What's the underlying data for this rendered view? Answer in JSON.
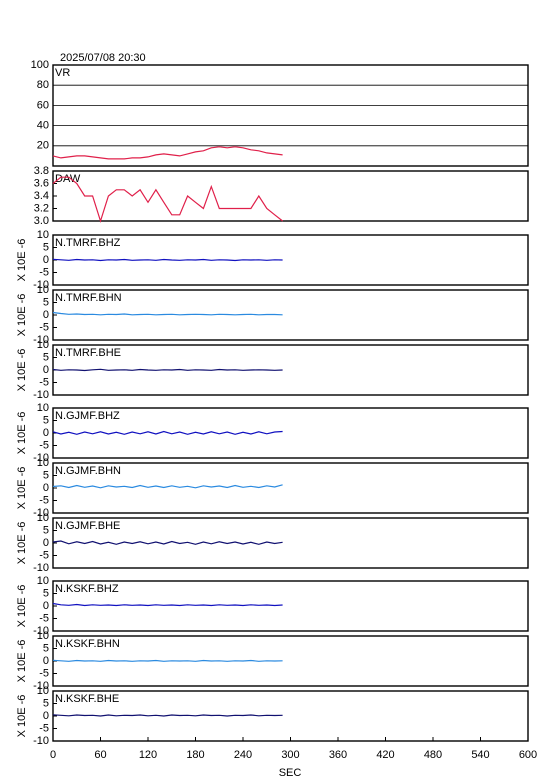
{
  "chart_data": [
    {
      "type": "line",
      "title": "2025/07/08 20:30",
      "label": "VR",
      "xlim": [
        0,
        600
      ],
      "ylim": [
        0,
        100
      ],
      "yticks": [
        20,
        40,
        60,
        80,
        100
      ],
      "grid": true,
      "color": "#e0204a",
      "x": [
        0,
        10,
        20,
        30,
        40,
        50,
        60,
        70,
        80,
        90,
        100,
        110,
        120,
        130,
        140,
        150,
        160,
        170,
        180,
        190,
        200,
        210,
        220,
        230,
        240,
        250,
        260,
        270,
        280,
        290
      ],
      "values": [
        10,
        8,
        9,
        10,
        10,
        9,
        8,
        7,
        7,
        7,
        8,
        8,
        9,
        11,
        12,
        11,
        10,
        12,
        14,
        15,
        18,
        19,
        18,
        19,
        18,
        16,
        15,
        13,
        12,
        11
      ]
    },
    {
      "type": "line",
      "label": "DAW",
      "xlim": [
        0,
        600
      ],
      "ylim": [
        3.0,
        3.8
      ],
      "yticks": [
        {
          "value": 3.0,
          "label": "3.0"
        },
        3.2,
        3.4,
        3.6,
        3.8
      ],
      "grid": false,
      "color": "#e0204a",
      "x": [
        0,
        10,
        20,
        30,
        40,
        50,
        60,
        70,
        80,
        90,
        100,
        110,
        120,
        130,
        140,
        150,
        160,
        170,
        180,
        190,
        200,
        210,
        220,
        230,
        240,
        250,
        260,
        270,
        280,
        290
      ],
      "values": [
        3.6,
        3.7,
        3.7,
        3.6,
        3.4,
        3.4,
        3.0,
        3.4,
        3.5,
        3.5,
        3.4,
        3.5,
        3.3,
        3.5,
        3.3,
        3.1,
        3.1,
        3.4,
        3.3,
        3.2,
        3.55,
        3.2,
        3.2,
        3.2,
        3.2,
        3.2,
        3.4,
        3.2,
        3.1,
        3.0
      ]
    },
    {
      "type": "line",
      "label": "N.TMRF.BHZ",
      "ylabel": "X 10E -6",
      "xlim": [
        0,
        600
      ],
      "ylim": [
        -10,
        10
      ],
      "yticks": [
        -10,
        -5,
        0,
        5,
        10
      ],
      "grid": false,
      "color": "#1010c0",
      "x": [
        0,
        10,
        20,
        30,
        40,
        50,
        60,
        70,
        80,
        90,
        100,
        110,
        120,
        130,
        140,
        150,
        160,
        170,
        180,
        190,
        200,
        210,
        220,
        230,
        240,
        250,
        260,
        270,
        280,
        290
      ],
      "values": [
        0.3,
        0.1,
        -0.1,
        0.2,
        0,
        0.1,
        -0.2,
        0.1,
        0,
        0.2,
        -0.1,
        0,
        0.1,
        -0.1,
        0.2,
        0,
        -0.1,
        0.1,
        0,
        0.2,
        -0.1,
        0.1,
        0,
        -0.2,
        0.1,
        0,
        0.1,
        -0.1,
        0.1,
        0
      ]
    },
    {
      "type": "line",
      "label": "N.TMRF.BHN",
      "ylabel": "X 10E -6",
      "xlim": [
        0,
        600
      ],
      "ylim": [
        -10,
        10
      ],
      "yticks": [
        -10,
        -5,
        0,
        5,
        10
      ],
      "grid": false,
      "color": "#2a8ae0",
      "x": [
        0,
        10,
        20,
        30,
        40,
        50,
        60,
        70,
        80,
        90,
        100,
        110,
        120,
        130,
        140,
        150,
        160,
        170,
        180,
        190,
        200,
        210,
        220,
        230,
        240,
        250,
        260,
        270,
        280,
        290
      ],
      "values": [
        1.0,
        0.6,
        0.3,
        0.4,
        0.2,
        0.3,
        0.1,
        0.3,
        0.2,
        0.4,
        0.1,
        0.2,
        0.3,
        0.1,
        0.2,
        0.3,
        0.1,
        0.2,
        0.3,
        0.2,
        0.1,
        0.3,
        0.2,
        0.1,
        0.2,
        0.3,
        0.1,
        0.2,
        0.2,
        0.1
      ]
    },
    {
      "type": "line",
      "label": "N.TMRF.BHE",
      "ylabel": "X 10E -6",
      "xlim": [
        0,
        600
      ],
      "ylim": [
        -10,
        10
      ],
      "yticks": [
        -10,
        -5,
        0,
        5,
        10
      ],
      "grid": false,
      "color": "#101070",
      "x": [
        0,
        10,
        20,
        30,
        40,
        50,
        60,
        70,
        80,
        90,
        100,
        110,
        120,
        130,
        140,
        150,
        160,
        170,
        180,
        190,
        200,
        210,
        220,
        230,
        240,
        250,
        260,
        270,
        280,
        290
      ],
      "values": [
        0.2,
        -0.1,
        0.1,
        0,
        -0.2,
        0.1,
        0.3,
        -0.1,
        0,
        0.1,
        -0.1,
        0.2,
        0,
        -0.1,
        0.1,
        0,
        0.2,
        -0.1,
        0.1,
        0,
        -0.1,
        0.2,
        0,
        0.1,
        -0.1,
        0,
        0.1,
        0,
        -0.1,
        0
      ]
    },
    {
      "type": "line",
      "label": "N.GJMF.BHZ",
      "ylabel": "X 10E -6",
      "xlim": [
        0,
        600
      ],
      "ylim": [
        -10,
        10
      ],
      "yticks": [
        -10,
        -5,
        0,
        5,
        10
      ],
      "grid": false,
      "color": "#1010c0",
      "x": [
        0,
        10,
        20,
        30,
        40,
        50,
        60,
        70,
        80,
        90,
        100,
        110,
        120,
        130,
        140,
        150,
        160,
        170,
        180,
        190,
        200,
        210,
        220,
        230,
        240,
        250,
        260,
        270,
        280,
        290
      ],
      "values": [
        0.5,
        -0.4,
        0.3,
        -0.5,
        0.4,
        -0.3,
        0.5,
        -0.4,
        0.3,
        -0.5,
        0.4,
        -0.3,
        0.5,
        -0.4,
        0.6,
        -0.3,
        0.4,
        -0.5,
        0.3,
        -0.4,
        0.5,
        -0.3,
        0.4,
        -0.5,
        0.3,
        -0.4,
        0.5,
        -0.3,
        0.4,
        0.6
      ]
    },
    {
      "type": "line",
      "label": "N.GJMF.BHN",
      "ylabel": "X 10E -6",
      "xlim": [
        0,
        600
      ],
      "ylim": [
        -10,
        10
      ],
      "yticks": [
        -10,
        -5,
        0,
        5,
        10
      ],
      "grid": false,
      "color": "#2a8ae0",
      "x": [
        0,
        10,
        20,
        30,
        40,
        50,
        60,
        70,
        80,
        90,
        100,
        110,
        120,
        130,
        140,
        150,
        160,
        170,
        180,
        190,
        200,
        210,
        220,
        230,
        240,
        250,
        260,
        270,
        280,
        290
      ],
      "values": [
        0.6,
        0.9,
        0.2,
        1.0,
        0.3,
        0.8,
        0.1,
        0.9,
        0.4,
        0.7,
        0.2,
        1.0,
        0.3,
        0.8,
        0.2,
        0.9,
        0.3,
        0.7,
        0.1,
        0.9,
        0.4,
        0.8,
        0.2,
        1.0,
        0.3,
        0.7,
        0.2,
        0.9,
        0.4,
        1.3
      ]
    },
    {
      "type": "line",
      "label": "N.GJMF.BHE",
      "ylabel": "X 10E -6",
      "xlim": [
        0,
        600
      ],
      "ylim": [
        -10,
        10
      ],
      "yticks": [
        -10,
        -5,
        0,
        5,
        10
      ],
      "grid": false,
      "color": "#101070",
      "x": [
        0,
        10,
        20,
        30,
        40,
        50,
        60,
        70,
        80,
        90,
        100,
        110,
        120,
        130,
        140,
        150,
        160,
        170,
        180,
        190,
        200,
        210,
        220,
        230,
        240,
        250,
        260,
        270,
        280,
        290
      ],
      "values": [
        0.4,
        0.8,
        -0.3,
        0.5,
        -0.2,
        0.6,
        -0.4,
        0.3,
        -0.5,
        0.4,
        -0.2,
        0.5,
        -0.3,
        0.4,
        -0.4,
        0.6,
        -0.2,
        0.3,
        -0.5,
        0.4,
        -0.3,
        0.5,
        -0.2,
        0.4,
        -0.4,
        0.3,
        -0.5,
        0.4,
        -0.2,
        0.3
      ]
    },
    {
      "type": "line",
      "label": "N.KSKF.BHZ",
      "ylabel": "X 10E -6",
      "xlim": [
        0,
        600
      ],
      "ylim": [
        -10,
        10
      ],
      "yticks": [
        -10,
        -5,
        0,
        5,
        10
      ],
      "grid": false,
      "color": "#1010c0",
      "x": [
        0,
        10,
        20,
        30,
        40,
        50,
        60,
        70,
        80,
        90,
        100,
        110,
        120,
        130,
        140,
        150,
        160,
        170,
        180,
        190,
        200,
        210,
        220,
        230,
        240,
        250,
        260,
        270,
        280,
        290
      ],
      "values": [
        1.0,
        0.5,
        0.3,
        0.6,
        0.2,
        0.5,
        0.3,
        0.4,
        0.2,
        0.5,
        0.3,
        0.4,
        0.2,
        0.5,
        0.3,
        0.4,
        0.2,
        0.5,
        0.3,
        0.4,
        0.2,
        0.5,
        0.3,
        0.4,
        0.2,
        0.5,
        0.3,
        0.4,
        0.2,
        0.4
      ]
    },
    {
      "type": "line",
      "label": "N.KSKF.BHN",
      "ylabel": "X 10E -6",
      "xlim": [
        0,
        600
      ],
      "ylim": [
        -10,
        10
      ],
      "yticks": [
        -10,
        -5,
        0,
        5,
        10
      ],
      "grid": false,
      "color": "#2a8ae0",
      "x": [
        0,
        10,
        20,
        30,
        40,
        50,
        60,
        70,
        80,
        90,
        100,
        110,
        120,
        130,
        140,
        150,
        160,
        170,
        180,
        190,
        200,
        210,
        220,
        230,
        240,
        250,
        260,
        270,
        280,
        290
      ],
      "values": [
        0.3,
        0.1,
        -0.1,
        0.2,
        0,
        0.1,
        -0.1,
        0.2,
        0,
        0.1,
        -0.1,
        0.1,
        0,
        0.2,
        -0.1,
        0.1,
        0,
        0.1,
        -0.1,
        0.2,
        0,
        0.1,
        -0.1,
        0.1,
        0,
        0.2,
        -0.1,
        0.1,
        0,
        0.1
      ]
    },
    {
      "type": "line",
      "label": "N.KSKF.BHE",
      "ylabel": "X 10E -6",
      "xlim": [
        0,
        600
      ],
      "ylim": [
        -10,
        10
      ],
      "yticks": [
        -10,
        -5,
        0,
        5,
        10
      ],
      "grid": false,
      "color": "#101070",
      "x": [
        0,
        10,
        20,
        30,
        40,
        50,
        60,
        70,
        80,
        90,
        100,
        110,
        120,
        130,
        140,
        150,
        160,
        170,
        180,
        190,
        200,
        210,
        220,
        230,
        240,
        250,
        260,
        270,
        280,
        290
      ],
      "values": [
        0.5,
        0.3,
        0.1,
        0.4,
        0.2,
        0.3,
        0,
        0.4,
        0.1,
        0.3,
        0.2,
        0.4,
        0.1,
        0.3,
        0,
        0.4,
        0.2,
        0.3,
        0.1,
        0.4,
        0.2,
        0.3,
        0,
        0.3,
        0.2,
        0.4,
        0.1,
        0.3,
        0.2,
        0.3
      ],
      "xlabel": "SEC",
      "xticks": [
        0,
        60,
        120,
        180,
        240,
        300,
        360,
        420,
        480,
        540,
        600
      ]
    }
  ]
}
